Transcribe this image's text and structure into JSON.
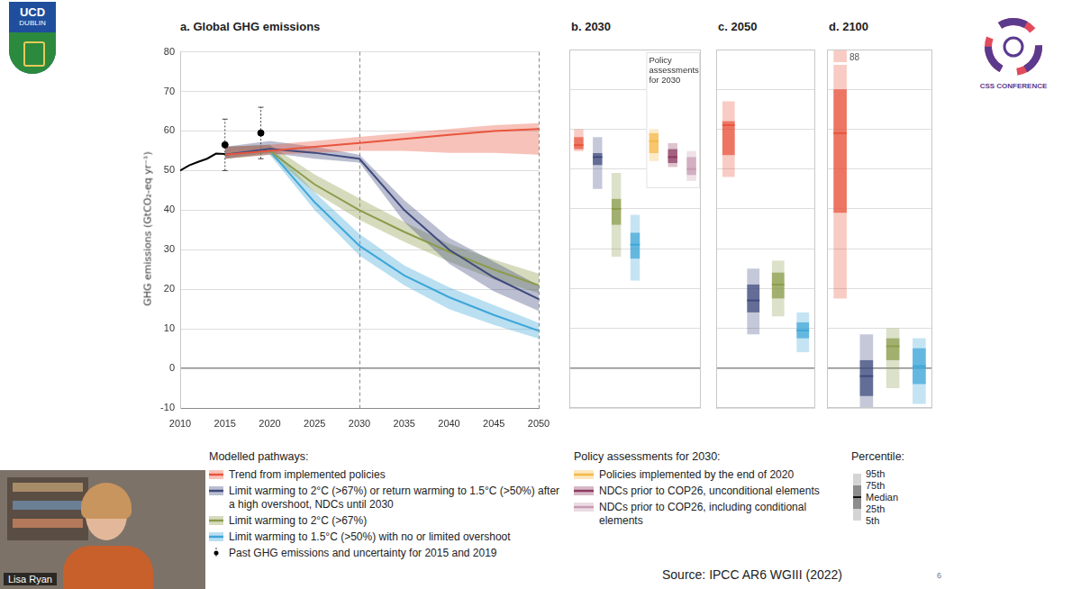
{
  "chart_data": [
    {
      "type": "line",
      "title": "a. Global GHG emissions",
      "y_label": "GHG emissions (GtCO₂-eq yr⁻¹)",
      "legend_title": "Modelled pathways:",
      "xlim": [
        2010,
        2050
      ],
      "xticks": [
        2010,
        2015,
        2020,
        2025,
        2030,
        2035,
        2040,
        2045,
        2050
      ],
      "ylim": [
        -10,
        80
      ],
      "yticks": [
        -10,
        0,
        10,
        20,
        30,
        40,
        50,
        60,
        70,
        80
      ],
      "grid": true,
      "vlines": [
        2030,
        2050
      ],
      "x": [
        2015,
        2020,
        2025,
        2030,
        2035,
        2040,
        2045,
        2050
      ],
      "series": [
        {
          "name": "Trend from implemented policies",
          "color": "#e8553d",
          "values": [
            54.0,
            55.0,
            56.0,
            57.0,
            58.0,
            59.0,
            60.0,
            60.5
          ],
          "low": [
            53.0,
            54.0,
            54.5,
            55.0,
            55.0,
            54.5,
            54.5,
            54.0
          ],
          "high": [
            56.0,
            56.5,
            57.5,
            58.5,
            59.5,
            60.5,
            61.5,
            62.0
          ]
        },
        {
          "name": "Limit warming to 2°C (>67%) or return warming to 1.5°C (>50%) after a high overshoot, NDCs until 2030",
          "color": "#3f4a7d",
          "values": [
            54.0,
            55.5,
            54.5,
            53.0,
            40.0,
            30.0,
            23.0,
            17.5
          ],
          "low": [
            53.0,
            54.5,
            53.0,
            52.0,
            37.0,
            26.5,
            19.5,
            14.5
          ],
          "high": [
            56.0,
            57.5,
            56.0,
            54.0,
            42.5,
            33.0,
            27.0,
            21.0
          ]
        },
        {
          "name": "Limit warming to 2°C (>67%)",
          "color": "#8c9c4c",
          "values": [
            54.0,
            55.0,
            46.5,
            40.0,
            34.5,
            29.5,
            25.0,
            21.0
          ],
          "low": [
            53.0,
            54.0,
            44.5,
            37.5,
            32.0,
            27.0,
            22.5,
            19.0
          ],
          "high": [
            56.0,
            56.5,
            49.0,
            43.0,
            37.0,
            31.5,
            27.5,
            24.0
          ]
        },
        {
          "name": "Limit warming to 1.5°C (>50%) with no or limited overshoot",
          "color": "#3ea6d8",
          "values": [
            54.0,
            55.0,
            42.0,
            31.0,
            23.5,
            18.0,
            13.5,
            9.5
          ],
          "low": [
            53.0,
            54.0,
            40.0,
            28.5,
            21.0,
            15.0,
            11.0,
            7.5
          ],
          "high": [
            56.0,
            56.5,
            44.5,
            34.0,
            26.0,
            20.5,
            16.0,
            11.5
          ]
        }
      ],
      "history": {
        "name": "Past GHG emissions and uncertainty for 2015 and 2019",
        "color": "#000000",
        "x": [
          2010,
          2011,
          2012,
          2013,
          2014,
          2015
        ],
        "values": [
          50.0,
          51.3,
          52.2,
          53.0,
          54.3,
          54.2
        ],
        "points": {
          "x": [
            2015,
            2019
          ],
          "values": [
            56.5,
            59.5
          ],
          "low": [
            50.0,
            53.0
          ],
          "high": [
            63.0,
            66.0
          ]
        }
      }
    },
    {
      "type": "box",
      "title": "b. 2030",
      "ylim": [
        -10,
        80
      ],
      "yticks": [
        -10,
        0,
        10,
        20,
        30,
        40,
        50,
        60,
        70,
        80
      ],
      "grid": true,
      "tick_labels": false,
      "annotation": "Policy assessments for 2030",
      "policy_title": "Policy assessments for 2030:",
      "policy_series": [
        {
          "name": "Policies implemented by the end of 2020",
          "color": "#f5b94a"
        },
        {
          "name": "NDCs prior to COP26, unconditional elements",
          "color": "#8e3b61"
        },
        {
          "name": "NDCs prior to COP26, including conditional elements",
          "color": "#c79bb2"
        }
      ],
      "boxes": [
        {
          "name": "Trend from implemented policies",
          "p5": 54.5,
          "p25": 55.0,
          "median": 56.0,
          "p75": 58.0,
          "p95": 60.0
        },
        {
          "name": "Limit warming to 2°C (>67%) or return warming to 1.5°C (>50%) after a high overshoot, NDCs until 2030",
          "p5": 45.0,
          "p25": 51.0,
          "median": 53.0,
          "p75": 54.0,
          "p95": 58.0
        },
        {
          "name": "Limit warming to 2°C (>67%)",
          "p5": 28.0,
          "p25": 36.0,
          "median": 40.0,
          "p75": 42.5,
          "p95": 49.0
        },
        {
          "name": "Limit warming to 1.5°C (>50%) with no or limited overshoot",
          "p5": 22.0,
          "p25": 27.5,
          "median": 31.0,
          "p75": 34.0,
          "p95": 38.5
        },
        {
          "name": "Policies implemented by the end of 2020",
          "p5": 52.0,
          "p25": 54.0,
          "median": 57.0,
          "p75": 59.0,
          "p95": 60.0
        },
        {
          "name": "NDCs prior to COP26, unconditional elements",
          "p5": 50.5,
          "p25": 51.5,
          "median": 53.0,
          "p75": 55.0,
          "p95": 56.5
        },
        {
          "name": "NDCs prior to COP26, including conditional elements",
          "p5": 47.0,
          "p25": 48.5,
          "median": 50.0,
          "p75": 53.0,
          "p95": 54.5
        }
      ]
    },
    {
      "type": "box",
      "title": "c. 2050",
      "ylim": [
        -10,
        80
      ],
      "yticks": [
        -10,
        0,
        10,
        20,
        30,
        40,
        50,
        60,
        70,
        80
      ],
      "grid": true,
      "tick_labels": false,
      "boxes": [
        {
          "name": "Trend from implemented policies",
          "p5": 48.0,
          "p25": 53.5,
          "median": 61.0,
          "p75": 62.0,
          "p95": 67.0
        },
        {
          "name": "Limit warming to 2°C (>67%) or return warming to 1.5°C (>50%) after a high overshoot, NDCs until 2030",
          "p5": 8.5,
          "p25": 14.0,
          "median": 17.0,
          "p75": 21.0,
          "p95": 25.0
        },
        {
          "name": "Limit warming to 2°C (>67%)",
          "p5": 13.0,
          "p25": 17.5,
          "median": 21.0,
          "p75": 24.0,
          "p95": 27.0
        },
        {
          "name": "Limit warming to 1.5°C (>50%) with no or limited overshoot",
          "p5": 4.0,
          "p25": 7.5,
          "median": 9.5,
          "p75": 11.5,
          "p95": 14.0
        }
      ]
    },
    {
      "type": "box",
      "title": "d. 2100",
      "ylim": [
        -10,
        80
      ],
      "yticks": [
        -10,
        0,
        10,
        20,
        30,
        40,
        50,
        60,
        70,
        80
      ],
      "grid": true,
      "tick_labels": false,
      "boxes": [
        {
          "name": "Trend from implemented policies",
          "p5": 17.5,
          "p25": 39.0,
          "median": 59.0,
          "p75": 70.0,
          "p95": 88
        },
        {
          "name": "Limit warming to 2°C (>67%) or return warming to 1.5°C (>50%) after a high overshoot, NDCs until 2030",
          "p5": -11.0,
          "p25": -7.0,
          "median": -2.0,
          "p75": 2.0,
          "p95": 8.5
        },
        {
          "name": "Limit warming to 2°C (>67%)",
          "p5": -5.0,
          "p25": 2.0,
          "median": 5.5,
          "p75": 7.5,
          "p95": 10.0
        },
        {
          "name": "Limit warming to 1.5°C (>50%) with no or limited overshoot",
          "p5": -9.0,
          "p25": -4.0,
          "median": 0.5,
          "p75": 5.0,
          "p95": 7.5
        }
      ]
    }
  ],
  "percentile_legend": {
    "title": "Percentile:",
    "labels": [
      "95th",
      "75th",
      "Median",
      "25th",
      "5th"
    ]
  },
  "slide": {
    "logo_left": [
      "UCD",
      "DUBLIN"
    ],
    "logo_right": "CSS CONFERENCE",
    "presenter": "Lisa Ryan",
    "source": "Source: IPCC AR6 WGIII (2022)",
    "page": "6"
  }
}
